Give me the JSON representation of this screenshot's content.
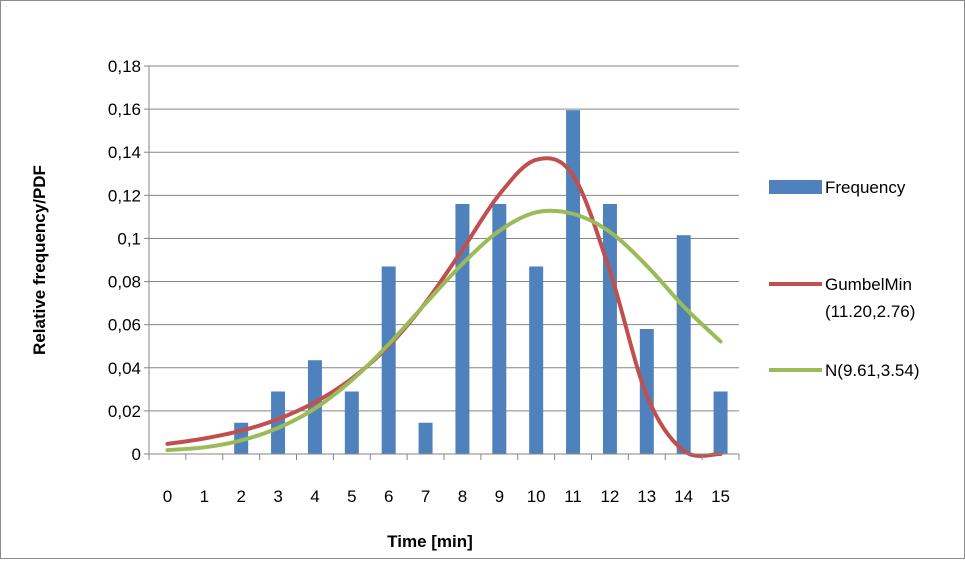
{
  "chart_data": {
    "type": "bar",
    "xlabel": "Time [min]",
    "ylabel": "Relative frequency/PDF",
    "categories": [
      "0",
      "1",
      "2",
      "3",
      "4",
      "5",
      "6",
      "7",
      "8",
      "9",
      "10",
      "11",
      "12",
      "13",
      "14",
      "15"
    ],
    "ylim": [
      0,
      0.18
    ],
    "y_ticks": [
      {
        "value": 0,
        "label": "0"
      },
      {
        "value": 0.02,
        "label": "0,02"
      },
      {
        "value": 0.04,
        "label": "0,04"
      },
      {
        "value": 0.06,
        "label": "0,06"
      },
      {
        "value": 0.08,
        "label": "0,08"
      },
      {
        "value": 0.1,
        "label": "0,1"
      },
      {
        "value": 0.12,
        "label": "0,12"
      },
      {
        "value": 0.14,
        "label": "0,14"
      },
      {
        "value": 0.16,
        "label": "0,16"
      },
      {
        "value": 0.18,
        "label": "0,18"
      }
    ],
    "grid": true,
    "legend_position": "right",
    "series": [
      {
        "name": "Frequency",
        "type": "bar",
        "color": "#4f81bd",
        "values": [
          0,
          0,
          0.0145,
          0.029,
          0.0435,
          0.029,
          0.087,
          0.0145,
          0.116,
          0.116,
          0.087,
          0.1595,
          0.116,
          0.058,
          0.1015,
          0.029
        ]
      },
      {
        "name": "GumbelMin (11.20,2.76)",
        "legend_lines": [
          "GumbelMin",
          "(11.20,2.76)"
        ],
        "type": "line",
        "color": "#c0504d",
        "x": [
          0,
          1,
          2,
          3,
          4,
          5,
          6,
          7,
          8,
          9,
          10,
          11,
          12,
          13,
          14,
          15
        ],
        "values": [
          0.0047,
          0.0072,
          0.0108,
          0.0162,
          0.024,
          0.035,
          0.0501,
          0.0702,
          0.0948,
          0.1204,
          0.1365,
          0.1293,
          0.0848,
          0.0271,
          0.0015,
          0.0
        ]
      },
      {
        "name": "N(9.61,3.54)",
        "type": "line",
        "color": "#9bbb59",
        "x": [
          0,
          1,
          2,
          3,
          4,
          5,
          6,
          7,
          8,
          9,
          10,
          11,
          12,
          13,
          14,
          15
        ],
        "values": [
          0.0018,
          0.0031,
          0.0063,
          0.0121,
          0.0211,
          0.0342,
          0.0509,
          0.0698,
          0.0882,
          0.1035,
          0.1121,
          0.1114,
          0.103,
          0.0873,
          0.0684,
          0.0522
        ]
      }
    ]
  }
}
